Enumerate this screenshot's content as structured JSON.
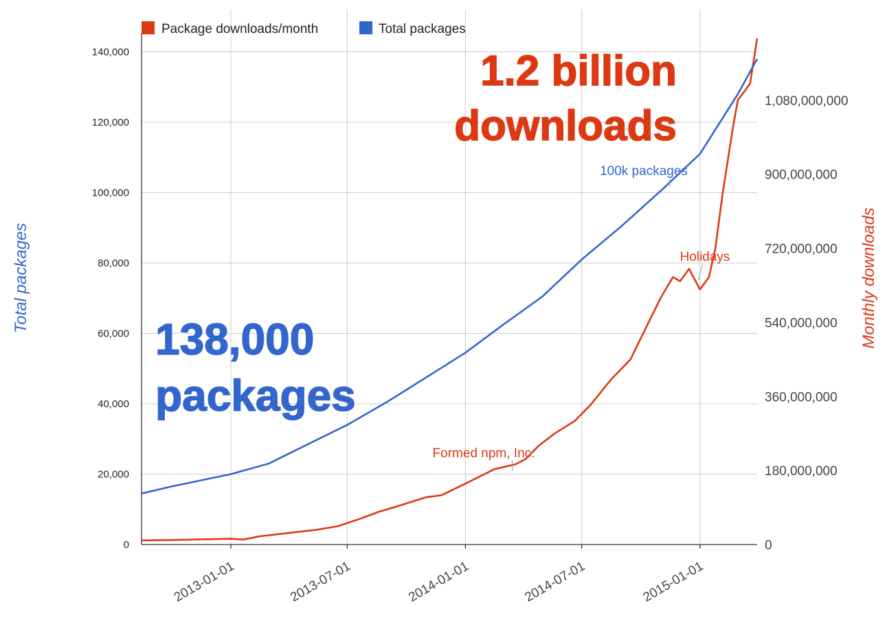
{
  "chart_data": {
    "type": "line",
    "legend_position": "top-left",
    "grid": true,
    "colors": {
      "downloads": "#dc3912",
      "packages": "#3366cc"
    },
    "x_ticks": [
      "2013-01-01",
      "2013-07-01",
      "2014-01-01",
      "2014-07-01",
      "2015-01-01"
    ],
    "x_range": [
      "2012-08-15",
      "2015-03-31"
    ],
    "y_left": {
      "label": "Total packages",
      "range": [
        0,
        152000
      ],
      "tick_values": [
        0,
        20000,
        40000,
        60000,
        80000,
        100000,
        120000,
        140000
      ],
      "tick_labels": [
        "0",
        "20,000",
        "40,000",
        "60,000",
        "80,000",
        "100,000",
        "120,000",
        "140,000"
      ]
    },
    "y_right": {
      "label": "Monthly downloads",
      "range": [
        0,
        1300000000
      ],
      "tick_values": [
        0,
        180000000,
        360000000,
        540000000,
        720000000,
        900000000,
        1080000000
      ],
      "tick_labels": [
        "0",
        "180,000,000",
        "360,000,000",
        "540,000,000",
        "720,000,000",
        "900,000,000",
        "1,080,000,000"
      ]
    },
    "series": [
      {
        "name": "Package downloads/month",
        "axis": "right",
        "points": [
          [
            "2012-08-15",
            10000000
          ],
          [
            "2012-10-01",
            11000000
          ],
          [
            "2012-12-01",
            13000000
          ],
          [
            "2013-01-01",
            14000000
          ],
          [
            "2013-01-20",
            12000000
          ],
          [
            "2013-02-15",
            20000000
          ],
          [
            "2013-04-01",
            28000000
          ],
          [
            "2013-05-15",
            36000000
          ],
          [
            "2013-06-15",
            44000000
          ],
          [
            "2013-07-01",
            52000000
          ],
          [
            "2013-07-20",
            62000000
          ],
          [
            "2013-08-20",
            80000000
          ],
          [
            "2013-09-15",
            92000000
          ],
          [
            "2013-11-01",
            115000000
          ],
          [
            "2013-11-25",
            120000000
          ],
          [
            "2014-01-01",
            148000000
          ],
          [
            "2014-02-15",
            183000000
          ],
          [
            "2014-03-20",
            195000000
          ],
          [
            "2014-04-05",
            208000000
          ],
          [
            "2014-04-25",
            240000000
          ],
          [
            "2014-05-20",
            270000000
          ],
          [
            "2014-06-20",
            300000000
          ],
          [
            "2014-07-15",
            340000000
          ],
          [
            "2014-08-15",
            400000000
          ],
          [
            "2014-09-15",
            450000000
          ],
          [
            "2014-10-10",
            530000000
          ],
          [
            "2014-11-01",
            600000000
          ],
          [
            "2014-11-20",
            650000000
          ],
          [
            "2014-12-01",
            640000000
          ],
          [
            "2014-12-15",
            670000000
          ],
          [
            "2015-01-01",
            620000000
          ],
          [
            "2015-01-15",
            650000000
          ],
          [
            "2015-01-25",
            720000000
          ],
          [
            "2015-02-05",
            850000000
          ],
          [
            "2015-02-15",
            950000000
          ],
          [
            "2015-02-22",
            1020000000
          ],
          [
            "2015-03-01",
            1080000000
          ],
          [
            "2015-03-20",
            1120000000
          ],
          [
            "2015-03-31",
            1230000000
          ]
        ]
      },
      {
        "name": "Total packages",
        "axis": "left",
        "points": [
          [
            "2012-08-15",
            14500
          ],
          [
            "2012-10-01",
            16500
          ],
          [
            "2013-01-01",
            20000
          ],
          [
            "2013-03-01",
            23000
          ],
          [
            "2013-05-01",
            28500
          ],
          [
            "2013-07-01",
            34000
          ],
          [
            "2013-09-01",
            40500
          ],
          [
            "2013-11-01",
            47500
          ],
          [
            "2014-01-01",
            54500
          ],
          [
            "2014-03-01",
            62500
          ],
          [
            "2014-05-01",
            70500
          ],
          [
            "2014-07-01",
            81000
          ],
          [
            "2014-09-01",
            90500
          ],
          [
            "2014-11-01",
            100500
          ],
          [
            "2015-01-01",
            111000
          ],
          [
            "2015-03-01",
            128000
          ],
          [
            "2015-03-31",
            138000
          ]
        ]
      }
    ],
    "annotations": {
      "downloads_big": {
        "lines": [
          "1.2 billion",
          "downloads"
        ]
      },
      "packages_big": {
        "lines": [
          "138,000",
          "packages"
        ]
      },
      "formed_npm": {
        "text": "Formed npm, Inc.",
        "date": "2014-03-15"
      },
      "holidays": {
        "text": "Holidays",
        "date": "2015-01-05"
      },
      "hundred_k": {
        "text": "100k packages",
        "date": "2014-11-15"
      }
    }
  }
}
